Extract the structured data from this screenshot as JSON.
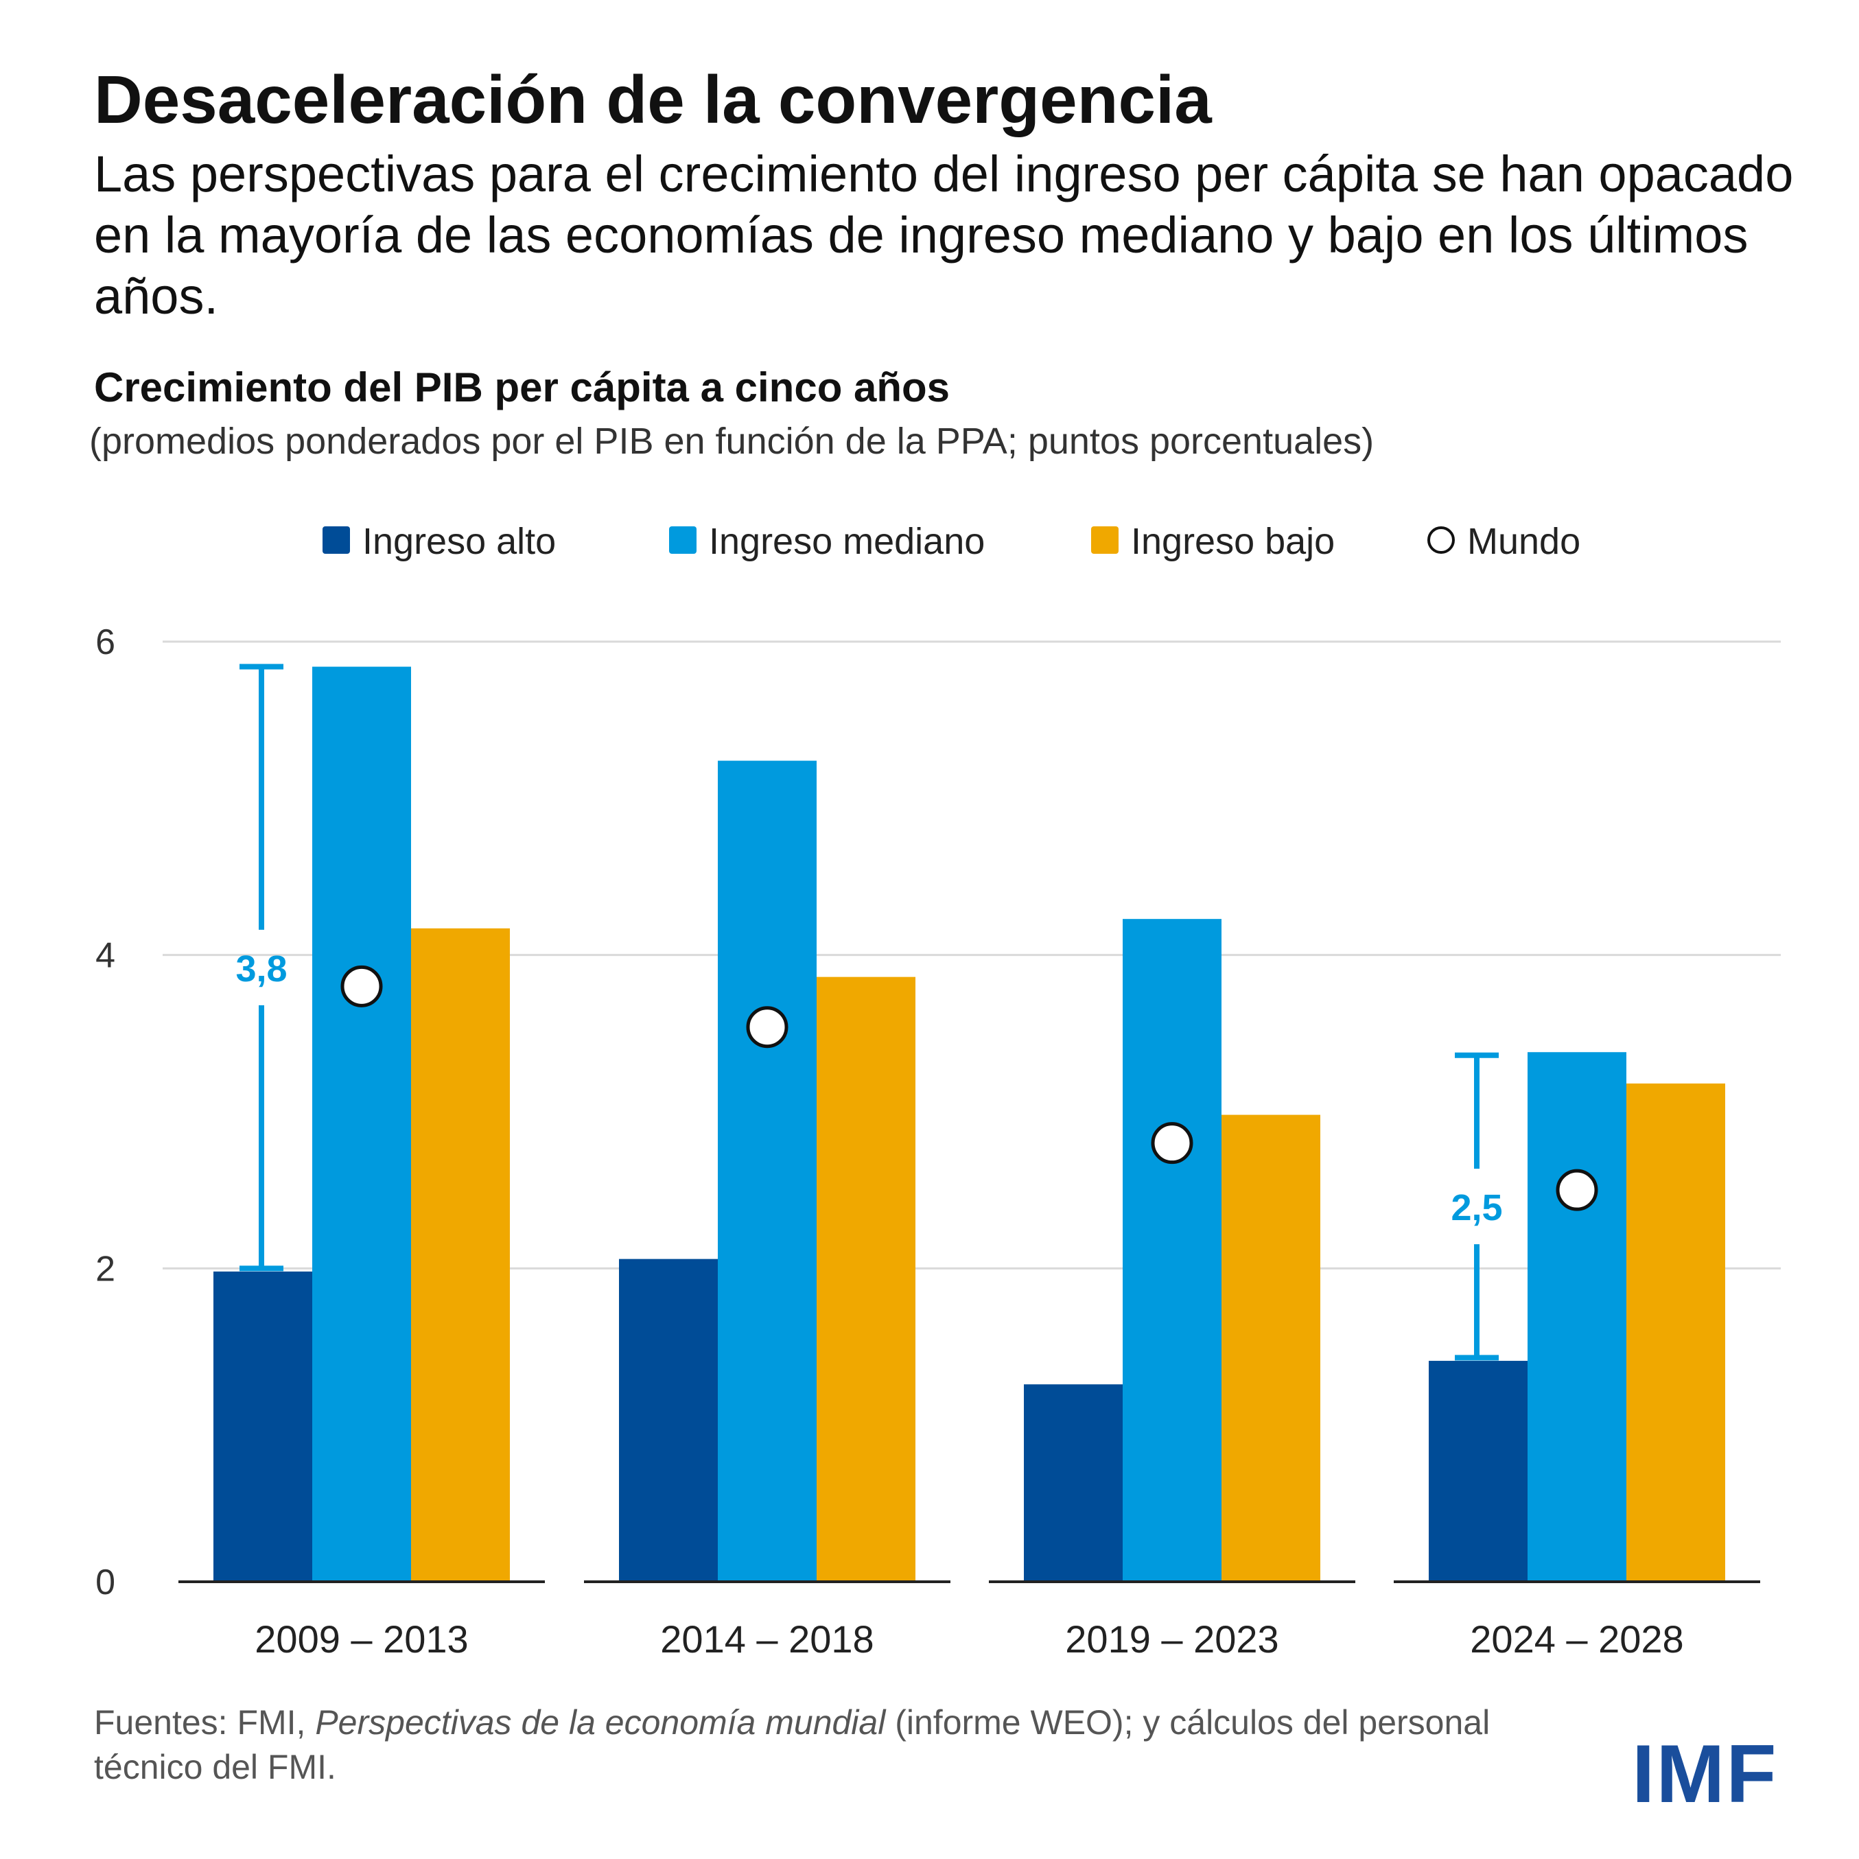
{
  "header": {
    "title": "Desaceleración de la convergencia",
    "subtitle": "Las perspectivas para el crecimiento del ingreso per cápita se han opacado en la mayoría de las economías de ingreso mediano y bajo en los últimos años."
  },
  "chart_data": {
    "type": "bar",
    "title": "Crecimiento del PIB per cápita a cinco años",
    "subtitle": "(promedios ponderados por el PIB en función de la PPA; puntos porcentuales)",
    "categories": [
      "2009 – 2013",
      "2014 – 2018",
      "2019 – 2023",
      "2024 – 2028"
    ],
    "series": [
      {
        "name": "Ingreso alto",
        "color": "#004c97",
        "values": [
          1.98,
          2.06,
          1.26,
          1.41
        ]
      },
      {
        "name": "Ingreso mediano",
        "color": "#009ade",
        "values": [
          5.84,
          5.24,
          4.23,
          3.38
        ]
      },
      {
        "name": "Ingreso bajo",
        "color": "#f0a800",
        "values": [
          4.17,
          3.86,
          2.98,
          3.18
        ]
      }
    ],
    "markers": {
      "name": "Mundo",
      "values": [
        3.8,
        3.54,
        2.8,
        2.5
      ]
    },
    "gap_annotations": [
      {
        "category": "2009 – 2013",
        "label": "3,8",
        "from": 2.0,
        "to": 5.84,
        "color": "#009ade"
      },
      {
        "category": "2024 – 2028",
        "label": "2,5",
        "from": 1.43,
        "to": 3.36,
        "color": "#009ade"
      }
    ],
    "yticks": [
      0,
      2,
      4,
      6
    ],
    "ylim": [
      0,
      6
    ],
    "grid": true,
    "legend": "top"
  },
  "footer": {
    "source_prefix": "Fuentes: FMI, ",
    "source_italic": "Perspectivas de la economía mundial",
    "source_suffix": " (informe WEO); y cálculos del personal técnico del FMI.",
    "logo": "IMF"
  }
}
